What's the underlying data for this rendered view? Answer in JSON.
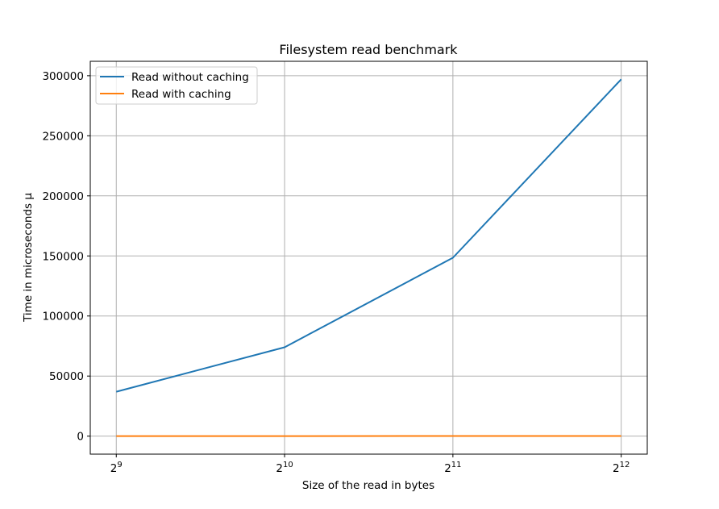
{
  "chart_data": {
    "type": "line",
    "title": "Filesystem read benchmark",
    "xlabel": "Size of the read in bytes",
    "ylabel": "Time in microseconds μ",
    "xscale": "log2",
    "x": [
      512,
      1024,
      2048,
      4096
    ],
    "x_ticks": [
      {
        "value": 512,
        "base": "2",
        "exp": "9"
      },
      {
        "value": 1024,
        "base": "2",
        "exp": "10"
      },
      {
        "value": 2048,
        "base": "2",
        "exp": "11"
      },
      {
        "value": 4096,
        "base": "2",
        "exp": "12"
      }
    ],
    "y_ticks": [
      "0",
      "50000",
      "100000",
      "150000",
      "200000",
      "250000",
      "300000"
    ],
    "ylim": [
      -15000,
      312000
    ],
    "xlim": [
      460,
      4560
    ],
    "grid": true,
    "legend_position": "upper-left",
    "series": [
      {
        "name": "Read without caching",
        "color": "#1f77b4",
        "values": [
          37000,
          74000,
          148500,
          297000
        ]
      },
      {
        "name": "Read with caching",
        "color": "#ff7f0e",
        "values": [
          50,
          60,
          80,
          100
        ]
      }
    ]
  }
}
